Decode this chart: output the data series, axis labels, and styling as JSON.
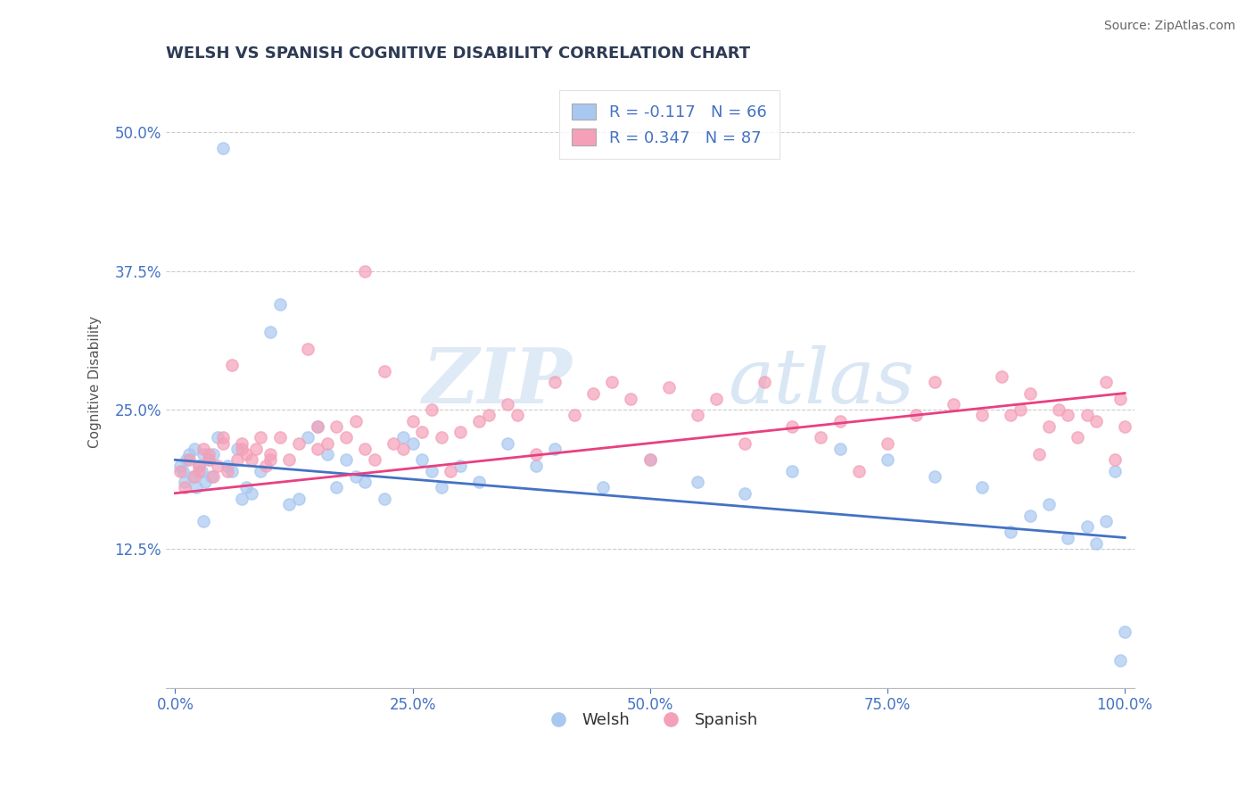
{
  "title": "WELSH VS SPANISH COGNITIVE DISABILITY CORRELATION CHART",
  "source": "Source: ZipAtlas.com",
  "ylabel": "Cognitive Disability",
  "xlim": [
    -1,
    101
  ],
  "ylim": [
    0,
    55
  ],
  "yticks": [
    0,
    12.5,
    25.0,
    37.5,
    50.0
  ],
  "ytick_labels": [
    "",
    "12.5%",
    "25.0%",
    "37.5%",
    "50.0%"
  ],
  "xtick_labels": [
    "0.0%",
    "25.0%",
    "50.0%",
    "75.0%",
    "100.0%"
  ],
  "xticks": [
    0,
    25,
    50,
    75,
    100
  ],
  "welsh_color": "#A8C8F0",
  "spanish_color": "#F4A0B8",
  "welsh_line_color": "#4472C4",
  "spanish_line_color": "#E84080",
  "welsh_R": -0.117,
  "welsh_N": 66,
  "spanish_R": 0.347,
  "spanish_N": 87,
  "title_color": "#2E3B55",
  "axis_label_color": "#4472C4",
  "tick_label_color": "#4472C4",
  "watermark_text": "ZIPatlas",
  "watermark_color": "#D8E8F4",
  "background_color": "#FFFFFF",
  "welsh_line_y0": 20.5,
  "welsh_line_y100": 13.5,
  "spanish_line_y0": 17.5,
  "spanish_line_y100": 26.5,
  "welsh_x": [
    0.5,
    0.8,
    1.0,
    1.2,
    1.5,
    1.8,
    2.0,
    2.2,
    2.5,
    2.8,
    3.0,
    3.2,
    3.5,
    3.8,
    4.0,
    4.5,
    5.0,
    5.5,
    6.0,
    6.5,
    7.0,
    7.5,
    8.0,
    9.0,
    10.0,
    11.0,
    12.0,
    13.0,
    14.0,
    15.0,
    16.0,
    17.0,
    18.0,
    19.0,
    20.0,
    22.0,
    24.0,
    25.0,
    26.0,
    27.0,
    28.0,
    30.0,
    32.0,
    35.0,
    38.0,
    40.0,
    45.0,
    50.0,
    55.0,
    60.0,
    65.0,
    70.0,
    75.0,
    80.0,
    85.0,
    88.0,
    90.0,
    92.0,
    94.0,
    96.0,
    97.0,
    98.0,
    99.0,
    99.5,
    100.0,
    3.0
  ],
  "welsh_y": [
    20.0,
    19.5,
    18.5,
    20.5,
    21.0,
    19.0,
    21.5,
    18.0,
    20.0,
    19.5,
    21.0,
    18.5,
    20.5,
    19.0,
    21.0,
    22.5,
    48.5,
    20.0,
    19.5,
    21.5,
    17.0,
    18.0,
    17.5,
    19.5,
    32.0,
    34.5,
    16.5,
    17.0,
    22.5,
    23.5,
    21.0,
    18.0,
    20.5,
    19.0,
    18.5,
    17.0,
    22.5,
    22.0,
    20.5,
    19.5,
    18.0,
    20.0,
    18.5,
    22.0,
    20.0,
    21.5,
    18.0,
    20.5,
    18.5,
    17.5,
    19.5,
    21.5,
    20.5,
    19.0,
    18.0,
    14.0,
    15.5,
    16.5,
    13.5,
    14.5,
    13.0,
    15.0,
    19.5,
    2.5,
    5.0,
    15.0
  ],
  "spanish_x": [
    0.5,
    1.0,
    1.5,
    2.0,
    2.5,
    3.0,
    3.5,
    4.0,
    4.5,
    5.0,
    5.5,
    6.0,
    6.5,
    7.0,
    7.5,
    8.0,
    8.5,
    9.0,
    9.5,
    10.0,
    11.0,
    12.0,
    13.0,
    14.0,
    15.0,
    16.0,
    17.0,
    18.0,
    19.0,
    20.0,
    21.0,
    22.0,
    23.0,
    24.0,
    25.0,
    26.0,
    27.0,
    28.0,
    29.0,
    30.0,
    32.0,
    33.0,
    35.0,
    36.0,
    38.0,
    40.0,
    42.0,
    44.0,
    46.0,
    48.0,
    50.0,
    52.0,
    55.0,
    57.0,
    60.0,
    62.0,
    65.0,
    68.0,
    70.0,
    72.0,
    75.0,
    78.0,
    80.0,
    82.0,
    85.0,
    87.0,
    88.0,
    89.0,
    90.0,
    91.0,
    92.0,
    93.0,
    94.0,
    95.0,
    96.0,
    97.0,
    98.0,
    99.0,
    99.5,
    100.0,
    2.5,
    3.5,
    5.0,
    7.0,
    10.0,
    15.0,
    20.0
  ],
  "spanish_y": [
    19.5,
    18.0,
    20.5,
    19.0,
    20.0,
    21.5,
    20.5,
    19.0,
    20.0,
    22.5,
    19.5,
    29.0,
    20.5,
    22.0,
    21.0,
    20.5,
    21.5,
    22.5,
    20.0,
    21.0,
    22.5,
    20.5,
    22.0,
    30.5,
    23.5,
    22.0,
    23.5,
    22.5,
    24.0,
    21.5,
    20.5,
    28.5,
    22.0,
    21.5,
    24.0,
    23.0,
    25.0,
    22.5,
    19.5,
    23.0,
    24.0,
    24.5,
    25.5,
    24.5,
    21.0,
    27.5,
    24.5,
    26.5,
    27.5,
    26.0,
    20.5,
    27.0,
    24.5,
    26.0,
    22.0,
    27.5,
    23.5,
    22.5,
    24.0,
    19.5,
    22.0,
    24.5,
    27.5,
    25.5,
    24.5,
    28.0,
    24.5,
    25.0,
    26.5,
    21.0,
    23.5,
    25.0,
    24.5,
    22.5,
    24.5,
    24.0,
    27.5,
    20.5,
    26.0,
    23.5,
    19.5,
    21.0,
    22.0,
    21.5,
    20.5,
    21.5,
    37.5
  ]
}
